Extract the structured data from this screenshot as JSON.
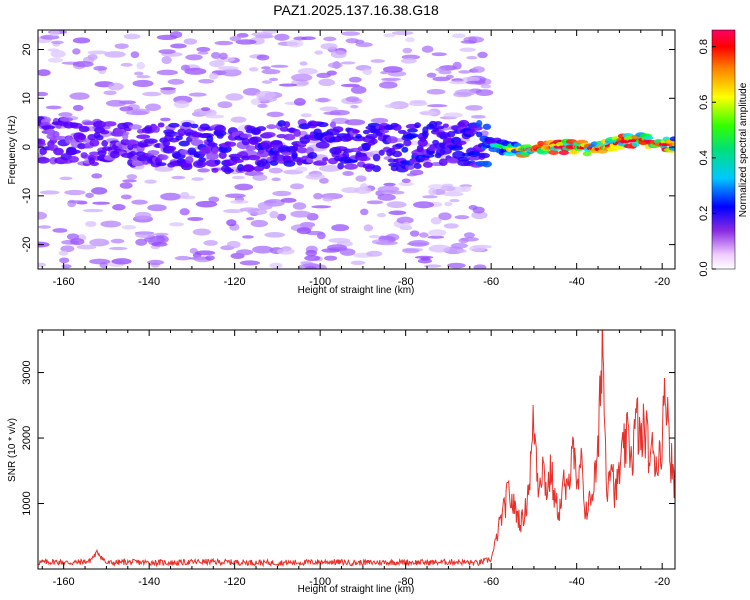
{
  "title": "PAZ1.2025.137.16.38.G18",
  "chart_data": [
    {
      "type": "heatmap",
      "xlabel": "Height of straight line (km)",
      "ylabel": "Frequency (Hz)",
      "xlim": [
        -166,
        -17
      ],
      "ylim": [
        -25,
        24
      ],
      "xticks": [
        -160,
        -140,
        -120,
        -100,
        -80,
        -60,
        -40,
        -20
      ],
      "yticks": [
        -20,
        -10,
        0,
        10,
        20
      ],
      "colorbar": {
        "label": "Normalized spectral amplitude",
        "ticks": [
          0.0,
          0.2,
          0.4,
          0.6,
          0.8
        ],
        "range": [
          0.0,
          0.86
        ],
        "colors": [
          "#ffffff",
          "#6600ff",
          "#0000ff",
          "#00e5ff",
          "#00ff00",
          "#ffff00",
          "#ff8000",
          "#ff0000",
          "#ff0066"
        ]
      },
      "ridge": {
        "x": [
          -160,
          -150,
          -140,
          -130,
          -120,
          -110,
          -100,
          -90,
          -80,
          -70,
          -60,
          -55,
          -50,
          -45,
          -40,
          -35,
          -30,
          -25,
          -20,
          -17
        ],
        "frequency": [
          1.5,
          0.5,
          0.5,
          0.5,
          -1.0,
          0.5,
          1.0,
          0.0,
          0.0,
          1.0,
          0.5,
          -0.5,
          -0.5,
          0.0,
          0.0,
          -0.5,
          1.0,
          1.5,
          0.5,
          0.5
        ],
        "amplitude": [
          0.15,
          0.15,
          0.15,
          0.2,
          0.2,
          0.2,
          0.2,
          0.2,
          0.25,
          0.2,
          0.3,
          0.55,
          0.8,
          0.85,
          0.8,
          0.75,
          0.8,
          0.8,
          0.85,
          0.6
        ]
      }
    },
    {
      "type": "line",
      "xlabel": "Height of straight line (km)",
      "ylabel": "SNR (10 * v/v)",
      "xlim": [
        -166,
        -17
      ],
      "ylim": [
        0,
        3650
      ],
      "xticks": [
        -160,
        -140,
        -120,
        -100,
        -80,
        -60,
        -40,
        -20
      ],
      "yticks": [
        1000,
        2000,
        3000
      ],
      "series": [
        {
          "color": "#e8302a",
          "x": [
            -166,
            -162,
            -158,
            -154,
            -152,
            -150,
            -146,
            -140,
            -134,
            -128,
            -122,
            -116,
            -110,
            -104,
            -98,
            -92,
            -86,
            -80,
            -74,
            -68,
            -63,
            -60,
            -59,
            -58,
            -57,
            -56,
            -55,
            -54,
            -53,
            -52,
            -51,
            -50,
            -49,
            -48,
            -47,
            -46,
            -45,
            -44,
            -43,
            -42,
            -41,
            -40,
            -39,
            -38,
            -37,
            -36,
            -35,
            -34,
            -33,
            -32,
            -31,
            -30,
            -29,
            -28,
            -27,
            -26,
            -25,
            -24,
            -23,
            -22,
            -21,
            -20,
            -19,
            -18,
            -17
          ],
          "y": [
            100,
            110,
            95,
            120,
            260,
            90,
            105,
            100,
            95,
            110,
            105,
            100,
            95,
            100,
            110,
            95,
            100,
            105,
            100,
            110,
            90,
            150,
            400,
            700,
            900,
            1180,
            1000,
            850,
            700,
            900,
            1400,
            2300,
            1300,
            1600,
            1200,
            1500,
            1000,
            900,
            1300,
            1100,
            2200,
            1100,
            1600,
            900,
            1000,
            1300,
            1700,
            3700,
            1200,
            1800,
            1100,
            1500,
            1800,
            2000,
            1700,
            2300,
            1900,
            2200,
            1700,
            1800,
            1600,
            2050,
            2800,
            1700,
            1300
          ]
        }
      ]
    }
  ]
}
